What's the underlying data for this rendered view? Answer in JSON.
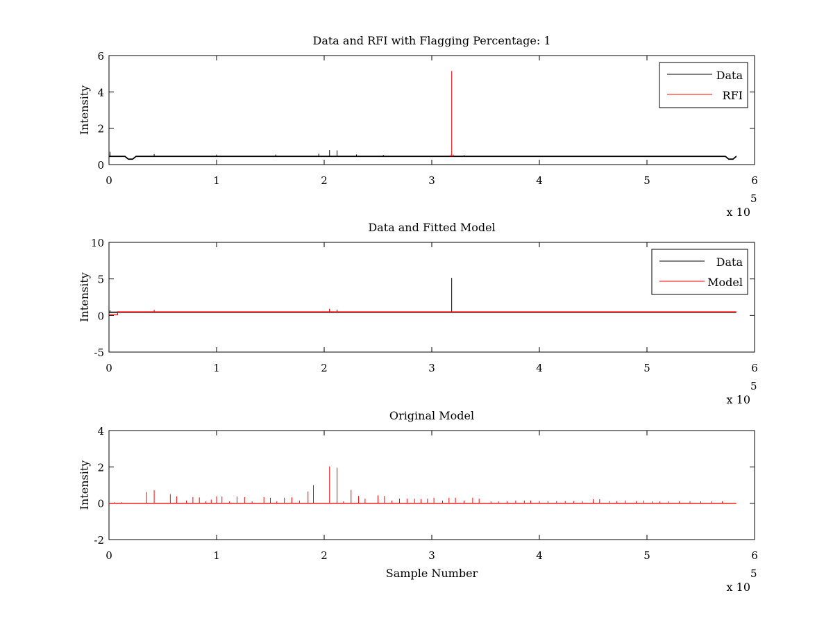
{
  "x_multiplier": {
    "label": "x 10",
    "exponent": "5"
  },
  "chart_data": [
    {
      "type": "line",
      "title": "Data and RFI with Flagging Percentage: 1",
      "xlabel": "",
      "ylabel": "Intensity",
      "xlim": [
        0,
        6
      ],
      "ylim": [
        0,
        6
      ],
      "xticks": [
        0,
        1,
        2,
        3,
        4,
        5,
        6
      ],
      "yticks": [
        0,
        2,
        4,
        6
      ],
      "grid": false,
      "legend_position": "top-right",
      "series": [
        {
          "name": "Data",
          "color": "#000000",
          "baseline": 0.45,
          "x_end": 5.83,
          "dips": [
            [
              0.2,
              0.3
            ],
            [
              5.78,
              0.3
            ]
          ],
          "spikes": [
            [
              0.01,
              0.7
            ],
            [
              0.42,
              0.58
            ],
            [
              1.0,
              0.55
            ],
            [
              1.55,
              0.55
            ],
            [
              1.95,
              0.6
            ],
            [
              2.05,
              0.8
            ],
            [
              2.12,
              0.78
            ],
            [
              2.3,
              0.56
            ],
            [
              2.55,
              0.53
            ],
            [
              3.3,
              0.52
            ],
            [
              3.8,
              0.48
            ],
            [
              4.4,
              0.48
            ],
            [
              5.2,
              0.47
            ]
          ]
        },
        {
          "name": "RFI",
          "color": "#ff0000",
          "spikes": [
            [
              3.185,
              5.15
            ],
            [
              3.2,
              0.55
            ],
            [
              3.17,
              0.52
            ]
          ]
        }
      ]
    },
    {
      "type": "line",
      "title": "Data and Fitted Model",
      "xlabel": "",
      "ylabel": "Intensity",
      "xlim": [
        0,
        6
      ],
      "ylim": [
        -5,
        10
      ],
      "xticks": [
        0,
        1,
        2,
        3,
        4,
        5,
        6
      ],
      "yticks": [
        -5,
        0,
        5,
        10
      ],
      "grid": false,
      "legend_position": "top-right",
      "series": [
        {
          "name": "Data",
          "color": "#000000",
          "baseline": 0.45,
          "x_end": 5.83,
          "spikes": [
            [
              3.185,
              5.15
            ],
            [
              0.01,
              0.7
            ],
            [
              0.42,
              0.75
            ],
            [
              2.05,
              0.9
            ],
            [
              2.12,
              0.8
            ]
          ]
        },
        {
          "name": "Model",
          "color": "#ff0000",
          "baseline": 0.5,
          "x_end": 5.83,
          "step": [
            [
              0.0,
              0.08,
              0.1
            ]
          ],
          "spikes": [
            [
              0.42,
              0.7
            ],
            [
              2.05,
              0.9
            ],
            [
              2.12,
              0.8
            ]
          ]
        }
      ]
    },
    {
      "type": "line",
      "title": "Original Model",
      "xlabel": "Sample Number",
      "ylabel": "Intensity",
      "xlim": [
        0,
        6
      ],
      "ylim": [
        -2,
        4
      ],
      "xticks": [
        0,
        1,
        2,
        3,
        4,
        5,
        6
      ],
      "yticks": [
        -2,
        0,
        2,
        4
      ],
      "grid": false,
      "legend_position": "",
      "series": [
        {
          "color": "#ff0000",
          "baseline": 0.0,
          "x_end": 5.83,
          "spikes": [
            [
              0.05,
              0.05
            ],
            [
              0.12,
              0.05
            ],
            [
              0.35,
              0.62
            ],
            [
              0.42,
              0.72
            ],
            [
              0.57,
              0.5
            ],
            [
              0.63,
              0.38
            ],
            [
              0.72,
              0.15
            ],
            [
              0.78,
              0.34
            ],
            [
              0.84,
              0.32
            ],
            [
              0.9,
              0.1
            ],
            [
              0.95,
              0.2
            ],
            [
              1.0,
              0.38
            ],
            [
              1.05,
              0.37
            ],
            [
              1.12,
              0.1
            ],
            [
              1.19,
              0.37
            ],
            [
              1.26,
              0.33
            ],
            [
              1.33,
              0.1
            ],
            [
              1.44,
              0.33
            ],
            [
              1.5,
              0.3
            ],
            [
              1.56,
              0.1
            ],
            [
              1.63,
              0.3
            ],
            [
              1.7,
              0.32
            ],
            [
              1.77,
              0.15
            ],
            [
              1.85,
              0.65
            ],
            [
              1.9,
              1.0
            ],
            [
              2.05,
              2.03
            ],
            [
              2.12,
              1.95
            ],
            [
              2.18,
              0.1
            ],
            [
              2.25,
              0.73
            ],
            [
              2.32,
              0.4
            ],
            [
              2.38,
              0.25
            ],
            [
              2.5,
              0.43
            ],
            [
              2.56,
              0.4
            ],
            [
              2.63,
              0.15
            ],
            [
              2.7,
              0.25
            ],
            [
              2.77,
              0.25
            ],
            [
              2.84,
              0.25
            ],
            [
              2.9,
              0.23
            ],
            [
              2.96,
              0.25
            ],
            [
              3.02,
              0.3
            ],
            [
              3.1,
              0.15
            ],
            [
              3.16,
              0.3
            ],
            [
              3.22,
              0.3
            ],
            [
              3.3,
              0.15
            ],
            [
              3.38,
              0.3
            ],
            [
              3.44,
              0.25
            ],
            [
              3.55,
              0.1
            ],
            [
              3.62,
              0.1
            ],
            [
              3.7,
              0.1
            ],
            [
              3.78,
              0.15
            ],
            [
              3.86,
              0.15
            ],
            [
              3.92,
              0.15
            ],
            [
              4.0,
              0.12
            ],
            [
              4.08,
              0.12
            ],
            [
              4.16,
              0.12
            ],
            [
              4.24,
              0.12
            ],
            [
              4.32,
              0.12
            ],
            [
              4.4,
              0.1
            ],
            [
              4.5,
              0.22
            ],
            [
              4.56,
              0.22
            ],
            [
              4.65,
              0.12
            ],
            [
              4.72,
              0.12
            ],
            [
              4.8,
              0.15
            ],
            [
              4.9,
              0.12
            ],
            [
              4.97,
              0.15
            ],
            [
              5.05,
              0.1
            ],
            [
              5.12,
              0.1
            ],
            [
              5.2,
              0.1
            ],
            [
              5.3,
              0.1
            ],
            [
              5.4,
              0.1
            ],
            [
              5.5,
              0.1
            ],
            [
              5.6,
              0.1
            ],
            [
              5.7,
              0.1
            ]
          ]
        }
      ]
    }
  ]
}
